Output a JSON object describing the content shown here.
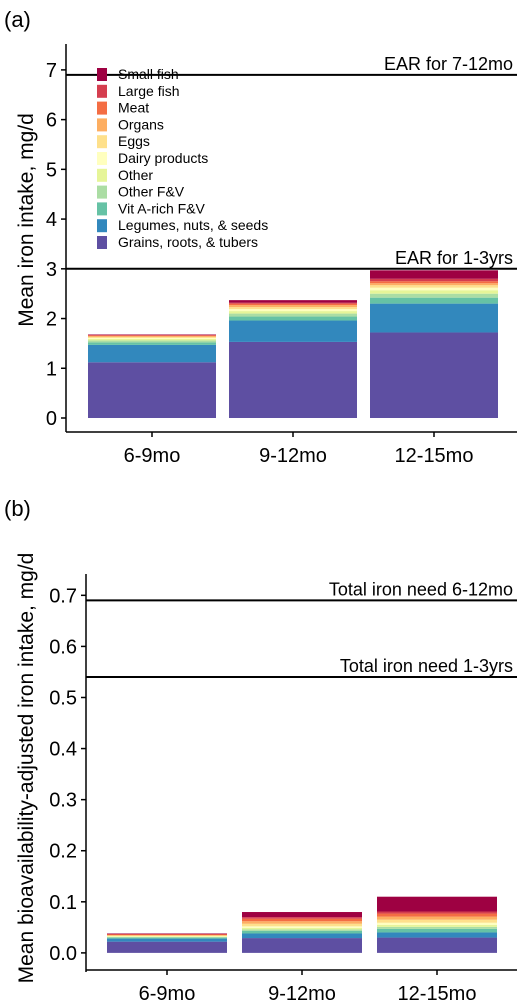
{
  "chart_data": [
    {
      "panel": "(a)",
      "type": "bar",
      "stacked": true,
      "ylabel": "Mean iron intake, mg/d",
      "xlabel": "",
      "ylim": [
        0,
        7.4
      ],
      "yticks": [
        0,
        1,
        2,
        3,
        4,
        5,
        6,
        7
      ],
      "categories": [
        "6-9mo",
        "9-12mo",
        "12-15mo"
      ],
      "reference_lines": [
        {
          "label": "EAR for 7-12mo",
          "value": 6.9
        },
        {
          "label": "EAR for 1-3yrs",
          "value": 3.0
        }
      ],
      "legend_position": "top-left",
      "series": [
        {
          "name": "Grains, roots, & tubers",
          "color": "#5e4fa2",
          "values": [
            1.12,
            1.53,
            1.72
          ]
        },
        {
          "name": "Legumes, nuts, & seeds",
          "color": "#3288bd",
          "values": [
            0.35,
            0.43,
            0.58
          ]
        },
        {
          "name": "Vit A-rich F&V",
          "color": "#66c2a5",
          "values": [
            0.05,
            0.08,
            0.12
          ]
        },
        {
          "name": "Other F&V",
          "color": "#abdda4",
          "values": [
            0.04,
            0.06,
            0.08
          ]
        },
        {
          "name": "Other",
          "color": "#e6f598",
          "values": [
            0.03,
            0.05,
            0.07
          ]
        },
        {
          "name": "Dairy products",
          "color": "#ffffbf",
          "values": [
            0.02,
            0.04,
            0.05
          ]
        },
        {
          "name": "Eggs",
          "color": "#fee08b",
          "values": [
            0.02,
            0.04,
            0.05
          ]
        },
        {
          "name": "Organs",
          "color": "#fdae61",
          "values": [
            0.02,
            0.04,
            0.04
          ]
        },
        {
          "name": "Meat",
          "color": "#f46d43",
          "values": [
            0.01,
            0.03,
            0.04
          ]
        },
        {
          "name": "Large fish",
          "color": "#d53e4f",
          "values": [
            0.01,
            0.02,
            0.05
          ]
        },
        {
          "name": "Small fish",
          "color": "#9e0142",
          "values": [
            0.01,
            0.05,
            0.17
          ]
        }
      ]
    },
    {
      "panel": "(b)",
      "type": "bar",
      "stacked": true,
      "ylabel": "Mean bioavailability-adjusted iron intake, mg/d",
      "xlabel": "",
      "ylim": [
        -0.01,
        0.73
      ],
      "yticks": [
        "0.0",
        "0.1",
        "0.2",
        "0.3",
        "0.4",
        "0.5",
        "0.6",
        "0.7"
      ],
      "categories": [
        "6-9mo",
        "9-12mo",
        "12-15mo"
      ],
      "reference_lines": [
        {
          "label": "Total iron need 6-12mo",
          "value": 0.69
        },
        {
          "label": "Total iron need 1-3yrs",
          "value": 0.54
        }
      ],
      "series": [
        {
          "name": "Grains, roots, & tubers",
          "color": "#5e4fa2",
          "values": [
            0.022,
            0.029,
            0.03
          ]
        },
        {
          "name": "Legumes, nuts, & seeds",
          "color": "#3288bd",
          "values": [
            0.006,
            0.009,
            0.01
          ]
        },
        {
          "name": "Vit A-rich F&V",
          "color": "#66c2a5",
          "values": [
            0.002,
            0.005,
            0.007
          ]
        },
        {
          "name": "Other F&V",
          "color": "#abdda4",
          "values": [
            0.001,
            0.003,
            0.004
          ]
        },
        {
          "name": "Other",
          "color": "#e6f598",
          "values": [
            0.001,
            0.003,
            0.004
          ]
        },
        {
          "name": "Dairy products",
          "color": "#ffffbf",
          "values": [
            0.001,
            0.003,
            0.004
          ]
        },
        {
          "name": "Eggs",
          "color": "#fee08b",
          "values": [
            0.001,
            0.005,
            0.006
          ]
        },
        {
          "name": "Organs",
          "color": "#fdae61",
          "values": [
            0.001,
            0.005,
            0.006
          ]
        },
        {
          "name": "Meat",
          "color": "#f46d43",
          "values": [
            0.001,
            0.005,
            0.006
          ]
        },
        {
          "name": "Large fish",
          "color": "#d53e4f",
          "values": [
            0.001,
            0.003,
            0.004
          ]
        },
        {
          "name": "Small fish",
          "color": "#9e0142",
          "values": [
            0.001,
            0.01,
            0.029
          ]
        }
      ]
    }
  ]
}
